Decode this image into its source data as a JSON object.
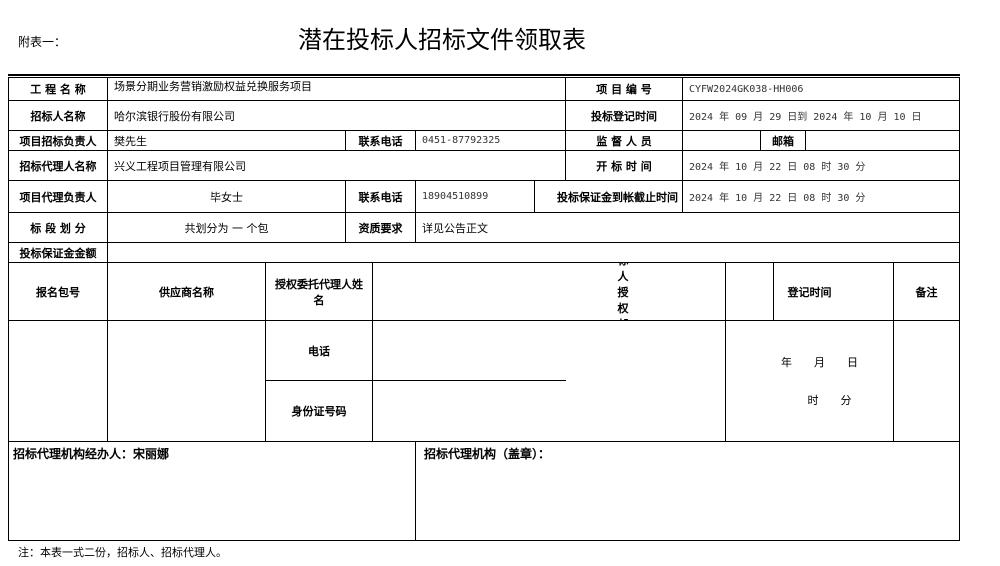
{
  "header": {
    "attachment": "附表一：",
    "title": "潜在投标人招标文件领取表"
  },
  "info": {
    "project_name_label": "工 程 名 称",
    "project_name": "场景分期业务营销激励权益兑换服务项目",
    "project_no_label": "项 目 编 号",
    "project_no": "CYFW2024GK038-HH006",
    "tenderer_label": "招标人名称",
    "tenderer": "哈尔滨银行股份有限公司",
    "register_time_label": "投标登记时间",
    "register_time": "2024 年 09 月 29 日到 2024 年 10 月 10 日",
    "owner_label": "项目招标负责人",
    "owner": "樊先生",
    "phone_label": "联系电话",
    "owner_phone": "0451-87792325",
    "supervisor_label": "监 督 人 员",
    "email_label": "邮箱",
    "agent_label": "招标代理人名称",
    "agent": "兴义工程项目管理有限公司",
    "open_time_label": "开 标 时 间",
    "open_time": "2024 年 10 月 22 日 08 时 30 分",
    "agent_owner_label": "项目代理负责人",
    "agent_owner": "毕女士",
    "agent_phone": "18904510899",
    "deposit_deadline_label": "投标保证金到帐截止时间",
    "deposit_deadline": "2024 年 10 月 22 日 08 时 30 分",
    "lot_label": "标 段 划 分",
    "lot": "共划分为 一 个包",
    "qual_label": "资质要求",
    "qual": "详见公告正文",
    "deposit_label": "投标保证金金额"
  },
  "grid": {
    "headers": [
      "报名包号",
      "供应商名称",
      "授权委托代理人姓名",
      "投标人授权邮箱",
      "登记时间",
      "备注"
    ],
    "phone_label": "电话",
    "id_label": "身份证号码",
    "date_ymd": "年　　月　　日",
    "date_hm": "时　　分"
  },
  "footer": {
    "handler_label": "招标代理机构经办人：宋丽娜",
    "seal_label": "招标代理机构（盖章）：",
    "note": "注：本表一式二份，招标人、招标代理人。"
  }
}
